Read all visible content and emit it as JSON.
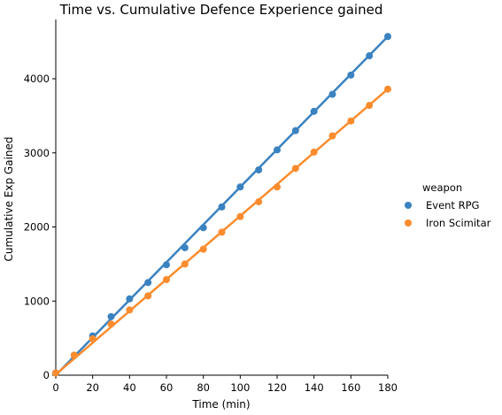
{
  "chart_data": {
    "type": "scatter",
    "title": "Time vs. Cumulative Defence Experience gained",
    "xlabel": "Time (min)",
    "ylabel": "Cumulative Exp Gained",
    "xlim": [
      0,
      180
    ],
    "ylim": [
      0,
      4800
    ],
    "xticks": [
      0,
      20,
      40,
      60,
      80,
      100,
      120,
      140,
      160,
      180
    ],
    "yticks": [
      0,
      1000,
      2000,
      3000,
      4000
    ],
    "grid": false,
    "legend": {
      "title": "weapon",
      "placement": "right"
    },
    "series": [
      {
        "name": "Event RPG",
        "color": "#3a82c0",
        "x": [
          0,
          10,
          20,
          30,
          40,
          50,
          60,
          70,
          80,
          90,
          100,
          110,
          120,
          130,
          140,
          150,
          160,
          170,
          180
        ],
        "y": [
          30,
          270,
          530,
          790,
          1030,
          1250,
          1490,
          1720,
          1990,
          2270,
          2540,
          2770,
          3040,
          3300,
          3560,
          3790,
          4050,
          4310,
          4570
        ],
        "fit": [
          0,
          4570
        ]
      },
      {
        "name": "Iron Scimitar",
        "color": "#fa8c2e",
        "x": [
          0,
          10,
          20,
          30,
          40,
          50,
          60,
          70,
          80,
          90,
          100,
          110,
          120,
          130,
          140,
          150,
          160,
          170,
          180
        ],
        "y": [
          30,
          270,
          490,
          690,
          880,
          1070,
          1290,
          1500,
          1700,
          1930,
          2140,
          2340,
          2540,
          2790,
          3010,
          3230,
          3430,
          3640,
          3860
        ],
        "fit": [
          10,
          3860
        ]
      }
    ]
  }
}
